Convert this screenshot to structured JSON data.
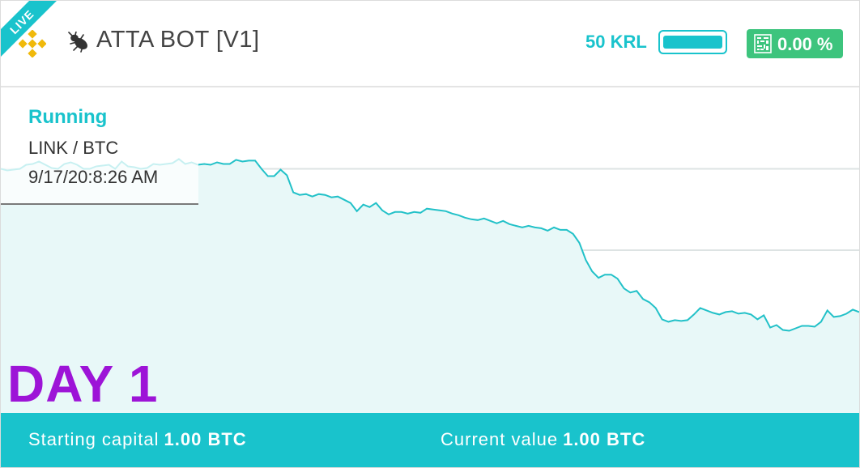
{
  "header": {
    "live_label": "LIVE",
    "exchange_icon": "binance-icon",
    "bot_icon": "ant-bug-icon",
    "bot_title": "ATTA BOT [V1]",
    "krl_label": "50 KRL",
    "krl_level": 1.0,
    "profit_icon": "qr-code-icon",
    "profit_percent": "0.00 %"
  },
  "status_card": {
    "status": "Running",
    "pair": "LINK / BTC",
    "timestamp": "9/17/20:8:26 AM"
  },
  "day_label": "DAY 1",
  "footer": {
    "starting_label": "Starting capital",
    "starting_value": "1.00 BTC",
    "current_label": "Current value",
    "current_value": "1.00 BTC"
  },
  "colors": {
    "accent": "#19c3cc",
    "profit_badge": "#3dc47d",
    "day_label": "#9d14d7",
    "chart_fill": "#e8f8f8"
  },
  "chart_data": {
    "type": "area",
    "title": "",
    "xlabel": "",
    "ylabel": "",
    "ylim": [
      0,
      400
    ],
    "grid": "horizontal",
    "series": [
      {
        "values": [
          300,
          298,
          299,
          300,
          305,
          306,
          309,
          305,
          301,
          300,
          306,
          308,
          305,
          300,
          300,
          303,
          304,
          305,
          300,
          309,
          303,
          302,
          300,
          301,
          306,
          305,
          306,
          307,
          312,
          306,
          308,
          305,
          306,
          305,
          308,
          306,
          306,
          311,
          309,
          310,
          310,
          300,
          291,
          291,
          299,
          292,
          271,
          268,
          269,
          266,
          269,
          268,
          265,
          266,
          262,
          258,
          248,
          256,
          253,
          258,
          249,
          244,
          247,
          247,
          245,
          247,
          246,
          251,
          250,
          249,
          248,
          245,
          243,
          240,
          238,
          237,
          239,
          236,
          233,
          236,
          232,
          230,
          228,
          230,
          228,
          227,
          224,
          228,
          225,
          225,
          220,
          209,
          188,
          174,
          166,
          170,
          170,
          165,
          153,
          148,
          150,
          140,
          136,
          129,
          115,
          112,
          114,
          113,
          114,
          121,
          129,
          126,
          123,
          121,
          124,
          125,
          122,
          123,
          121,
          115,
          120,
          105,
          108,
          102,
          101,
          104,
          107,
          107,
          106,
          112,
          126,
          118,
          119,
          122,
          127,
          124
        ]
      }
    ]
  }
}
